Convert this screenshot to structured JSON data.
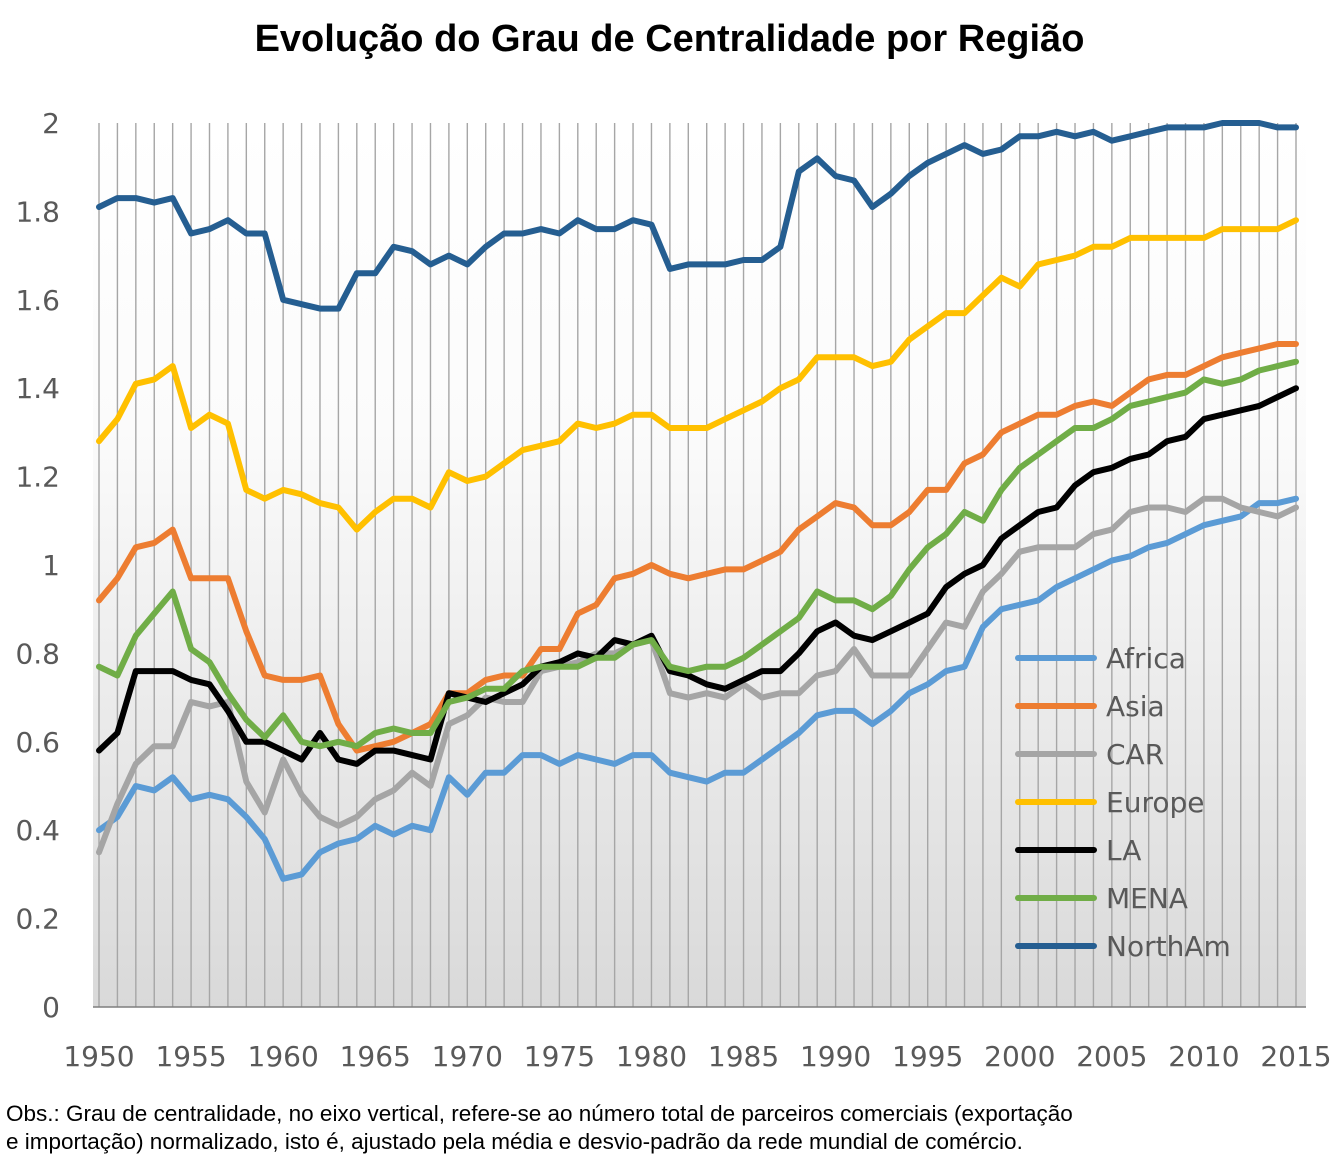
{
  "chart_data": {
    "type": "line",
    "title": "Evolução do Grau de Centralidade por Região",
    "xlabel": "",
    "ylabel": "",
    "x": [
      1950,
      1951,
      1952,
      1953,
      1954,
      1955,
      1956,
      1957,
      1958,
      1959,
      1960,
      1961,
      1962,
      1963,
      1964,
      1965,
      1966,
      1967,
      1968,
      1969,
      1970,
      1971,
      1972,
      1973,
      1974,
      1975,
      1976,
      1977,
      1978,
      1979,
      1980,
      1981,
      1982,
      1983,
      1984,
      1985,
      1986,
      1987,
      1988,
      1989,
      1990,
      1991,
      1992,
      1993,
      1994,
      1995,
      1996,
      1997,
      1998,
      1999,
      2000,
      2001,
      2002,
      2003,
      2004,
      2005,
      2006,
      2007,
      2008,
      2009,
      2010,
      2011,
      2012,
      2013,
      2014,
      2015
    ],
    "xlim": [
      1950,
      2015
    ],
    "ylim": [
      0,
      2
    ],
    "x_ticks": [
      "1950",
      "1955",
      "1960",
      "1965",
      "1970",
      "1975",
      "1980",
      "1985",
      "1990",
      "1995",
      "2000",
      "2005",
      "2010",
      "2015"
    ],
    "y_ticks": [
      "0",
      "0.2",
      "0.4",
      "0.6",
      "0.8",
      "1",
      "1.2",
      "1.4",
      "1.6",
      "1.8",
      "2"
    ],
    "grid": "vertical",
    "legend_position": "bottom-right",
    "series": [
      {
        "name": "Africa",
        "color": "#5B9BD5",
        "values": [
          0.4,
          0.43,
          0.5,
          0.49,
          0.52,
          0.47,
          0.48,
          0.47,
          0.43,
          0.38,
          0.29,
          0.3,
          0.35,
          0.37,
          0.38,
          0.41,
          0.39,
          0.41,
          0.4,
          0.52,
          0.48,
          0.53,
          0.53,
          0.57,
          0.57,
          0.55,
          0.57,
          0.56,
          0.55,
          0.57,
          0.57,
          0.53,
          0.52,
          0.51,
          0.53,
          0.53,
          0.56,
          0.59,
          0.62,
          0.66,
          0.67,
          0.67,
          0.64,
          0.67,
          0.71,
          0.73,
          0.76,
          0.77,
          0.86,
          0.9,
          0.91,
          0.92,
          0.95,
          0.97,
          0.99,
          1.01,
          1.02,
          1.04,
          1.05,
          1.07,
          1.09,
          1.1,
          1.11,
          1.14,
          1.14,
          1.15
        ]
      },
      {
        "name": "Asia",
        "color": "#ED7D31",
        "values": [
          0.92,
          0.97,
          1.04,
          1.05,
          1.08,
          0.97,
          0.97,
          0.97,
          0.85,
          0.75,
          0.74,
          0.74,
          0.75,
          0.64,
          0.58,
          0.59,
          0.6,
          0.62,
          0.64,
          0.71,
          0.71,
          0.74,
          0.75,
          0.75,
          0.81,
          0.81,
          0.89,
          0.91,
          0.97,
          0.98,
          1.0,
          0.98,
          0.97,
          0.98,
          0.99,
          0.99,
          1.01,
          1.03,
          1.08,
          1.11,
          1.14,
          1.13,
          1.09,
          1.09,
          1.12,
          1.17,
          1.17,
          1.23,
          1.25,
          1.3,
          1.32,
          1.34,
          1.34,
          1.36,
          1.37,
          1.36,
          1.39,
          1.42,
          1.43,
          1.43,
          1.45,
          1.47,
          1.48,
          1.49,
          1.5,
          1.5
        ]
      },
      {
        "name": "CAR",
        "color": "#A5A5A5",
        "values": [
          0.35,
          0.46,
          0.55,
          0.59,
          0.59,
          0.69,
          0.68,
          0.69,
          0.51,
          0.44,
          0.56,
          0.48,
          0.43,
          0.41,
          0.43,
          0.47,
          0.49,
          0.53,
          0.5,
          0.64,
          0.66,
          0.7,
          0.69,
          0.69,
          0.76,
          0.77,
          0.78,
          0.8,
          0.8,
          0.82,
          0.83,
          0.71,
          0.7,
          0.71,
          0.7,
          0.73,
          0.7,
          0.71,
          0.71,
          0.75,
          0.76,
          0.81,
          0.75,
          0.75,
          0.75,
          0.81,
          0.87,
          0.86,
          0.94,
          0.98,
          1.03,
          1.04,
          1.04,
          1.04,
          1.07,
          1.08,
          1.12,
          1.13,
          1.13,
          1.12,
          1.15,
          1.15,
          1.13,
          1.12,
          1.11,
          1.13
        ]
      },
      {
        "name": "Europe",
        "color": "#FFC000",
        "values": [
          1.28,
          1.33,
          1.41,
          1.42,
          1.45,
          1.31,
          1.34,
          1.32,
          1.17,
          1.15,
          1.17,
          1.16,
          1.14,
          1.13,
          1.08,
          1.12,
          1.15,
          1.15,
          1.13,
          1.21,
          1.19,
          1.2,
          1.23,
          1.26,
          1.27,
          1.28,
          1.32,
          1.31,
          1.32,
          1.34,
          1.34,
          1.31,
          1.31,
          1.31,
          1.33,
          1.35,
          1.37,
          1.4,
          1.42,
          1.47,
          1.47,
          1.47,
          1.45,
          1.46,
          1.51,
          1.54,
          1.57,
          1.57,
          1.61,
          1.65,
          1.63,
          1.68,
          1.69,
          1.7,
          1.72,
          1.72,
          1.74,
          1.74,
          1.74,
          1.74,
          1.74,
          1.76,
          1.76,
          1.76,
          1.76,
          1.78
        ]
      },
      {
        "name": "LA",
        "color": "#000000",
        "values": [
          0.58,
          0.62,
          0.76,
          0.76,
          0.76,
          0.74,
          0.73,
          0.67,
          0.6,
          0.6,
          0.58,
          0.56,
          0.62,
          0.56,
          0.55,
          0.58,
          0.58,
          0.57,
          0.56,
          0.71,
          0.7,
          0.69,
          0.71,
          0.73,
          0.77,
          0.78,
          0.8,
          0.79,
          0.83,
          0.82,
          0.84,
          0.76,
          0.75,
          0.73,
          0.72,
          0.74,
          0.76,
          0.76,
          0.8,
          0.85,
          0.87,
          0.84,
          0.83,
          0.85,
          0.87,
          0.89,
          0.95,
          0.98,
          1.0,
          1.06,
          1.09,
          1.12,
          1.13,
          1.18,
          1.21,
          1.22,
          1.24,
          1.25,
          1.28,
          1.29,
          1.33,
          1.34,
          1.35,
          1.36,
          1.38,
          1.4
        ]
      },
      {
        "name": "MENA",
        "color": "#70AD47",
        "values": [
          0.77,
          0.75,
          0.84,
          0.89,
          0.94,
          0.81,
          0.78,
          0.71,
          0.65,
          0.61,
          0.66,
          0.6,
          0.59,
          0.6,
          0.59,
          0.62,
          0.63,
          0.62,
          0.62,
          0.69,
          0.7,
          0.72,
          0.72,
          0.76,
          0.77,
          0.77,
          0.77,
          0.79,
          0.79,
          0.82,
          0.83,
          0.77,
          0.76,
          0.77,
          0.77,
          0.79,
          0.82,
          0.85,
          0.88,
          0.94,
          0.92,
          0.92,
          0.9,
          0.93,
          0.99,
          1.04,
          1.07,
          1.12,
          1.1,
          1.17,
          1.22,
          1.25,
          1.28,
          1.31,
          1.31,
          1.33,
          1.36,
          1.37,
          1.38,
          1.39,
          1.42,
          1.41,
          1.42,
          1.44,
          1.45,
          1.46
        ]
      },
      {
        "name": "NorthAm",
        "color": "#255E91",
        "values": [
          1.81,
          1.83,
          1.83,
          1.82,
          1.83,
          1.75,
          1.76,
          1.78,
          1.75,
          1.75,
          1.6,
          1.59,
          1.58,
          1.58,
          1.66,
          1.66,
          1.72,
          1.71,
          1.68,
          1.7,
          1.68,
          1.72,
          1.75,
          1.75,
          1.76,
          1.75,
          1.78,
          1.76,
          1.76,
          1.78,
          1.77,
          1.67,
          1.68,
          1.68,
          1.68,
          1.69,
          1.69,
          1.72,
          1.89,
          1.92,
          1.88,
          1.87,
          1.81,
          1.84,
          1.88,
          1.91,
          1.93,
          1.95,
          1.93,
          1.94,
          1.97,
          1.97,
          1.98,
          1.97,
          1.98,
          1.96,
          1.97,
          1.98,
          1.99,
          1.99,
          1.99,
          2.0,
          2.0,
          2.0,
          1.99,
          1.99
        ]
      }
    ]
  },
  "note": {
    "line1": "Obs.: Grau de centralidade, no eixo vertical, refere-se ao número total de parceiros comerciais (exportação",
    "line2": "e importação) normalizado, isto é, ajustado pela média e desvio-padrão da rede mundial de comércio."
  }
}
